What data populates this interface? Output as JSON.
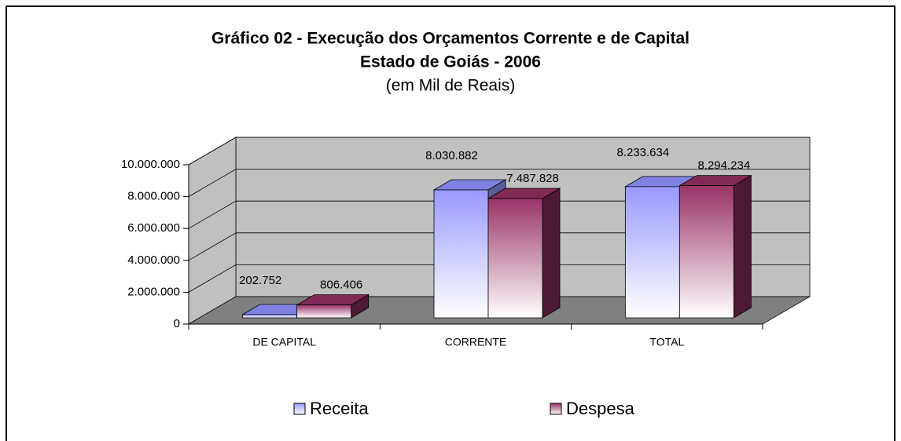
{
  "chart_data": {
    "type": "bar3d",
    "title": "Gráfico 02 - Execução dos Orçamentos Corrente e de Capital",
    "subtitle": "Estado de Goiás - 2006",
    "note": "(em Mil de Reais)",
    "categories": [
      "DE CAPITAL",
      "CORRENTE",
      "TOTAL"
    ],
    "series": [
      {
        "name": "Receita",
        "color": "#9999ff",
        "values": [
          202752,
          8030882,
          8233634
        ],
        "value_labels": [
          "202.752",
          "8.030.882",
          "8.233.634"
        ]
      },
      {
        "name": "Despesa",
        "color": "#993366",
        "values": [
          806406,
          7487828,
          8294234
        ],
        "value_labels": [
          "806.406",
          "7.487.828",
          "8.294.234"
        ]
      }
    ],
    "ylim": [
      0,
      10000000
    ],
    "yticks": [
      0,
      {
        "value": 2000000,
        "label": "2.000.000"
      },
      {
        "value": 4000000,
        "label": "4.000.000"
      },
      {
        "value": 6000000,
        "label": "6.000.000"
      },
      {
        "value": 8000000,
        "label": "8.000.000"
      },
      {
        "value": 10000000,
        "label": "10.000.000"
      }
    ],
    "grid": true,
    "legend": "bottom"
  }
}
